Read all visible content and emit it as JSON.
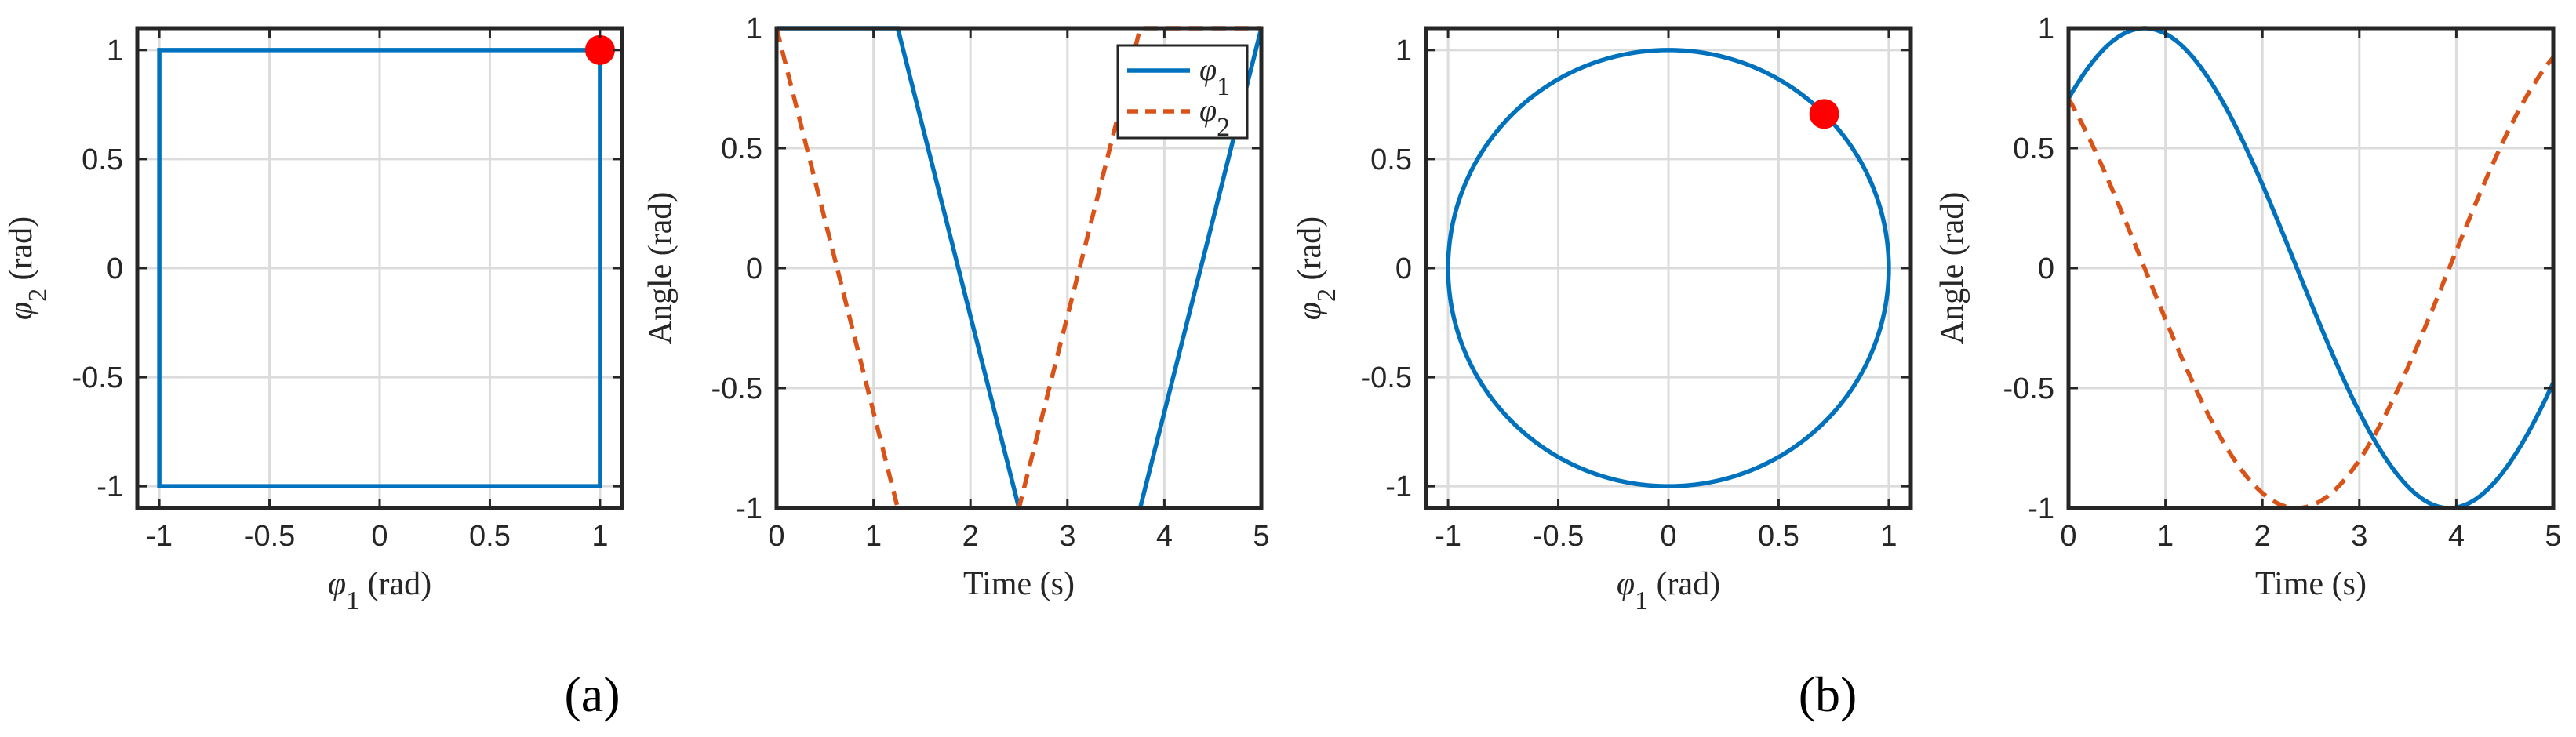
{
  "panel_labels": {
    "a": "(a)",
    "b": "(b)"
  },
  "colors": {
    "phi1": "#0072BD",
    "phi2": "#D95319",
    "marker": "#FF0000",
    "grid": "#DCDCDC",
    "axis": "#262626"
  },
  "chart_data": [
    {
      "type": "line",
      "xlabel": "φ1 (rad)",
      "ylabel": "φ2 (rad)",
      "xlim": [
        -1.1,
        1.1
      ],
      "ylim": [
        -1.1,
        1.1
      ],
      "xticks": [
        -1,
        -0.5,
        0,
        0.5,
        1
      ],
      "yticks": [
        -1,
        -0.5,
        0,
        0.5,
        1
      ],
      "xtick_labels": [
        "-1",
        "-0.5",
        "0",
        "0.5",
        "1"
      ],
      "ytick_labels": [
        "-1",
        "-0.5",
        "0",
        "0.5",
        "1"
      ],
      "grid": true,
      "series": [
        {
          "x": [
            1,
            1,
            -1,
            -1,
            1,
            1
          ],
          "y": [
            1,
            -1,
            -1,
            1,
            1,
            1
          ],
          "style": "solid",
          "color": "#0072BD"
        }
      ],
      "markers": [
        {
          "x": 1,
          "y": 1,
          "color": "#FF0000"
        }
      ]
    },
    {
      "type": "line",
      "xlabel": "Time (s)",
      "ylabel": "Angle (rad)",
      "xlim": [
        0,
        5
      ],
      "ylim": [
        -1,
        1
      ],
      "xticks": [
        0,
        1,
        2,
        3,
        4,
        5
      ],
      "yticks": [
        -1,
        -0.5,
        0,
        0.5,
        1
      ],
      "xtick_labels": [
        "0",
        "1",
        "2",
        "3",
        "4",
        "5"
      ],
      "ytick_labels": [
        "-1",
        "-0.5",
        "0",
        "0.5",
        "1"
      ],
      "grid": true,
      "legend": {
        "placement": "top-right",
        "entries": [
          "φ1",
          "φ2"
        ]
      },
      "series": [
        {
          "name": "φ1",
          "x": [
            0,
            1.25,
            2.5,
            3.75,
            5
          ],
          "y": [
            1,
            1,
            -1,
            -1,
            1
          ],
          "style": "solid",
          "color": "#0072BD"
        },
        {
          "name": "φ2",
          "x": [
            0,
            1.25,
            2.5,
            3.75,
            5
          ],
          "y": [
            1,
            -1,
            -1,
            1,
            1
          ],
          "style": "dashed",
          "color": "#D95319"
        }
      ]
    },
    {
      "type": "line",
      "xlabel": "φ1 (rad)",
      "ylabel": "φ2 (rad)",
      "xlim": [
        -1.1,
        1.1
      ],
      "ylim": [
        -1.1,
        1.1
      ],
      "xticks": [
        -1,
        -0.5,
        0,
        0.5,
        1
      ],
      "yticks": [
        -1,
        -0.5,
        0,
        0.5,
        1
      ],
      "xtick_labels": [
        "-1",
        "-0.5",
        "0",
        "0.5",
        "1"
      ],
      "ytick_labels": [
        "-1",
        "-0.5",
        "0",
        "0.5",
        "1"
      ],
      "grid": true,
      "series": [
        {
          "curve": "unit-circle",
          "radius": 1,
          "center": [
            0,
            0
          ],
          "style": "solid",
          "color": "#0072BD"
        }
      ],
      "markers": [
        {
          "x": 0.707,
          "y": 0.707,
          "color": "#FF0000"
        }
      ]
    },
    {
      "type": "line",
      "xlabel": "Time (s)",
      "ylabel": "Angle (rad)",
      "xlim": [
        0,
        5
      ],
      "ylim": [
        -1,
        1
      ],
      "xticks": [
        0,
        1,
        2,
        3,
        4,
        5
      ],
      "yticks": [
        -1,
        -0.5,
        0,
        0.5,
        1
      ],
      "xtick_labels": [
        "0",
        "1",
        "2",
        "3",
        "4",
        "5"
      ],
      "ytick_labels": [
        "-1",
        "-0.5",
        "0",
        "0.5",
        "1"
      ],
      "grid": true,
      "series": [
        {
          "name": "φ1",
          "curve": "sin(t + 0.7854)",
          "x_range": [
            0,
            5
          ],
          "style": "solid",
          "color": "#0072BD"
        },
        {
          "name": "φ2",
          "curve": "cos(t + 0.7854)",
          "x_range": [
            0,
            5
          ],
          "style": "dashed",
          "color": "#D95319"
        }
      ]
    }
  ]
}
